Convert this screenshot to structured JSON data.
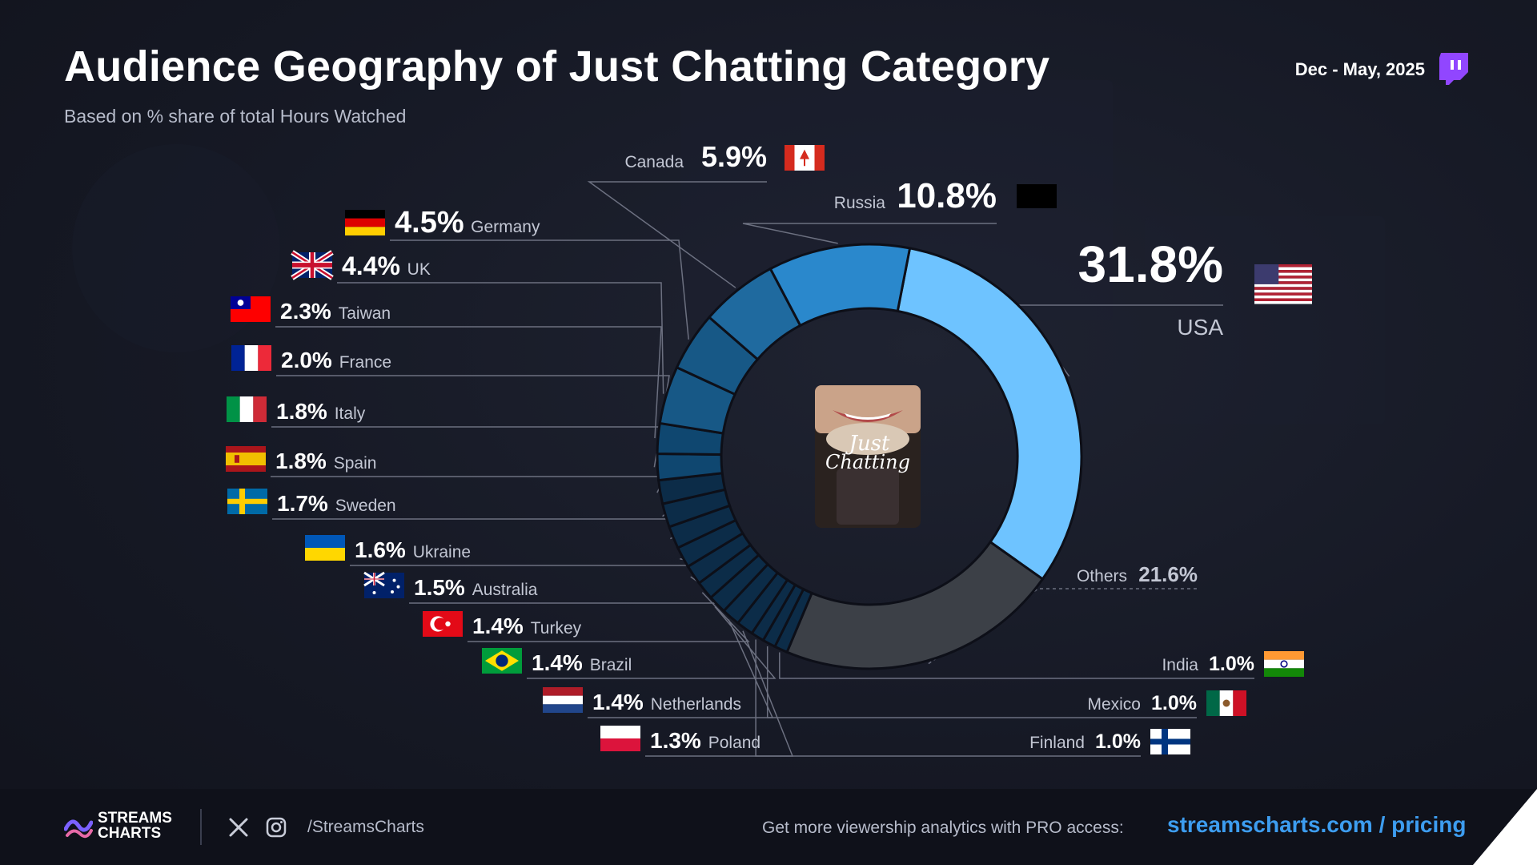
{
  "header": {
    "title": "Audience Geography of Just Chatting Category",
    "subtitle": "Based on % share of total Hours Watched",
    "date_range": "Dec - May, 2025"
  },
  "center_image": {
    "caption_line1": "Just",
    "caption_line2": "Chatting"
  },
  "footer": {
    "brand_line1": "STREAMS",
    "brand_line2": "CHARTS",
    "social_handle": "/StreamsCharts",
    "promo_text": "Get more viewership analytics with PRO access:",
    "promo_link": "streamscharts.com / pricing"
  },
  "colors": {
    "usa": "#6ec3ff",
    "russia": "#2a88cc",
    "canada": "#1f6a9f",
    "others": "#3c4047",
    "small_dark": "#0c2c48"
  },
  "chart_data": {
    "type": "pie",
    "donut": true,
    "title": "Audience Geography of Just Chatting Category",
    "subtitle": "Based on % share of total Hours Watched",
    "unit": "%",
    "slices": [
      {
        "name": "USA",
        "value": 31.8,
        "label": "31.8%",
        "flag": "us-flag"
      },
      {
        "name": "Others",
        "value": 21.6,
        "label": "21.6%",
        "flag": ""
      },
      {
        "name": "India",
        "value": 1.0,
        "label": "1.0%",
        "flag": "india-flag"
      },
      {
        "name": "Mexico",
        "value": 1.0,
        "label": "1.0%",
        "flag": "mexico-flag"
      },
      {
        "name": "Finland",
        "value": 1.0,
        "label": "1.0%",
        "flag": "finland-flag"
      },
      {
        "name": "Poland",
        "value": 1.3,
        "label": "1.3%",
        "flag": "poland-flag"
      },
      {
        "name": "Netherlands",
        "value": 1.4,
        "label": "1.4%",
        "flag": "netherlands-flag"
      },
      {
        "name": "Brazil",
        "value": 1.4,
        "label": "1.4%",
        "flag": "brazil-flag"
      },
      {
        "name": "Turkey",
        "value": 1.4,
        "label": "1.4%",
        "flag": "turkey-flag"
      },
      {
        "name": "Australia",
        "value": 1.5,
        "label": "1.5%",
        "flag": "australia-flag"
      },
      {
        "name": "Ukraine",
        "value": 1.6,
        "label": "1.6%",
        "flag": "ukraine-flag"
      },
      {
        "name": "Sweden",
        "value": 1.7,
        "label": "1.7%",
        "flag": "sweden-flag"
      },
      {
        "name": "Spain",
        "value": 1.8,
        "label": "1.8%",
        "flag": "spain-flag"
      },
      {
        "name": "Italy",
        "value": 1.8,
        "label": "1.8%",
        "flag": "italy-flag"
      },
      {
        "name": "France",
        "value": 2.0,
        "label": "2.0%",
        "flag": "france-flag"
      },
      {
        "name": "Taiwan",
        "value": 2.3,
        "label": "2.3%",
        "flag": "taiwan-flag"
      },
      {
        "name": "UK",
        "value": 4.4,
        "label": "4.4%",
        "flag": "uk-flag"
      },
      {
        "name": "Germany",
        "value": 4.5,
        "label": "4.5%",
        "flag": "germany-flag"
      },
      {
        "name": "Canada",
        "value": 5.9,
        "label": "5.9%",
        "flag": "canada-flag"
      },
      {
        "name": "Russia",
        "value": 10.8,
        "label": "10.8%",
        "flag": "russia-flag"
      }
    ]
  }
}
